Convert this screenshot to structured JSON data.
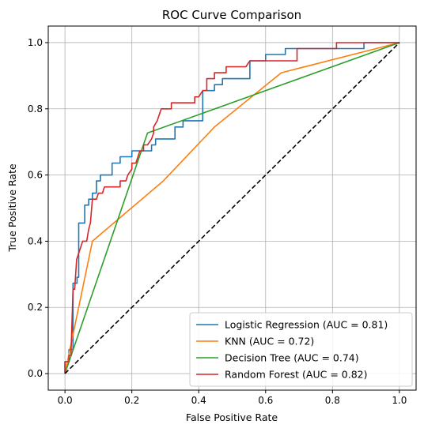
{
  "chart_data": {
    "type": "line",
    "title": "ROC Curve Comparison",
    "xlabel": "False Positive Rate",
    "ylabel": "True Positive Rate",
    "xlim": [
      -0.05,
      1.05
    ],
    "ylim": [
      -0.05,
      1.05
    ],
    "xticks": [
      "0.0",
      "0.2",
      "0.4",
      "0.6",
      "0.8",
      "1.0"
    ],
    "yticks": [
      "0.0",
      "0.2",
      "0.4",
      "0.6",
      "0.8",
      "1.0"
    ],
    "grid": true,
    "legend_position": "lower-right",
    "series": [
      {
        "name": "Logistic Regression (AUC = 0.81)",
        "color": "#1f77b4",
        "points": [
          [
            0,
            0
          ],
          [
            0,
            0.036
          ],
          [
            0.012,
            0.036
          ],
          [
            0.012,
            0.073
          ],
          [
            0.024,
            0.073
          ],
          [
            0.024,
            0.273
          ],
          [
            0.036,
            0.273
          ],
          [
            0.036,
            0.291
          ],
          [
            0.041,
            0.291
          ],
          [
            0.041,
            0.455
          ],
          [
            0.059,
            0.455
          ],
          [
            0.059,
            0.509
          ],
          [
            0.071,
            0.509
          ],
          [
            0.071,
            0.527
          ],
          [
            0.082,
            0.527
          ],
          [
            0.082,
            0.545
          ],
          [
            0.094,
            0.545
          ],
          [
            0.094,
            0.582
          ],
          [
            0.106,
            0.582
          ],
          [
            0.106,
            0.6
          ],
          [
            0.141,
            0.6
          ],
          [
            0.141,
            0.636
          ],
          [
            0.165,
            0.636
          ],
          [
            0.165,
            0.655
          ],
          [
            0.2,
            0.655
          ],
          [
            0.2,
            0.673
          ],
          [
            0.259,
            0.673
          ],
          [
            0.259,
            0.691
          ],
          [
            0.271,
            0.691
          ],
          [
            0.271,
            0.709
          ],
          [
            0.329,
            0.709
          ],
          [
            0.329,
            0.745
          ],
          [
            0.353,
            0.745
          ],
          [
            0.353,
            0.764
          ],
          [
            0.412,
            0.764
          ],
          [
            0.412,
            0.855
          ],
          [
            0.447,
            0.855
          ],
          [
            0.447,
            0.873
          ],
          [
            0.471,
            0.873
          ],
          [
            0.471,
            0.891
          ],
          [
            0.553,
            0.891
          ],
          [
            0.553,
            0.945
          ],
          [
            0.6,
            0.945
          ],
          [
            0.6,
            0.964
          ],
          [
            0.659,
            0.964
          ],
          [
            0.659,
            0.982
          ],
          [
            0.894,
            0.982
          ],
          [
            0.894,
            1.0
          ],
          [
            1.0,
            1.0
          ]
        ]
      },
      {
        "name": "KNN (AUC = 0.72)",
        "color": "#ff7f0e",
        "points": [
          [
            0,
            0
          ],
          [
            0.082,
            0.4
          ],
          [
            0.294,
            0.582
          ],
          [
            0.447,
            0.745
          ],
          [
            0.647,
            0.909
          ],
          [
            1.0,
            1.0
          ]
        ]
      },
      {
        "name": "Decision Tree (AUC = 0.74)",
        "color": "#2ca02c",
        "points": [
          [
            0,
            0
          ],
          [
            0.247,
            0.727
          ],
          [
            1.0,
            1.0
          ]
        ]
      },
      {
        "name": "Random Forest (AUC = 0.82)",
        "color": "#d62728",
        "points": [
          [
            0,
            0
          ],
          [
            0,
            0.036
          ],
          [
            0.012,
            0.036
          ],
          [
            0.012,
            0.055
          ],
          [
            0.018,
            0.055
          ],
          [
            0.024,
            0.255
          ],
          [
            0.029,
            0.255
          ],
          [
            0.035,
            0.345
          ],
          [
            0.041,
            0.364
          ],
          [
            0.047,
            0.382
          ],
          [
            0.053,
            0.4
          ],
          [
            0.065,
            0.4
          ],
          [
            0.071,
            0.436
          ],
          [
            0.076,
            0.455
          ],
          [
            0.082,
            0.527
          ],
          [
            0.094,
            0.527
          ],
          [
            0.1,
            0.545
          ],
          [
            0.112,
            0.545
          ],
          [
            0.118,
            0.564
          ],
          [
            0.129,
            0.564
          ],
          [
            0.141,
            0.564
          ],
          [
            0.165,
            0.564
          ],
          [
            0.165,
            0.582
          ],
          [
            0.182,
            0.582
          ],
          [
            0.188,
            0.6
          ],
          [
            0.2,
            0.618
          ],
          [
            0.2,
            0.636
          ],
          [
            0.212,
            0.636
          ],
          [
            0.224,
            0.673
          ],
          [
            0.235,
            0.673
          ],
          [
            0.235,
            0.691
          ],
          [
            0.247,
            0.691
          ],
          [
            0.259,
            0.709
          ],
          [
            0.265,
            0.727
          ],
          [
            0.265,
            0.745
          ],
          [
            0.276,
            0.764
          ],
          [
            0.282,
            0.782
          ],
          [
            0.288,
            0.8
          ],
          [
            0.306,
            0.8
          ],
          [
            0.318,
            0.8
          ],
          [
            0.318,
            0.818
          ],
          [
            0.388,
            0.818
          ],
          [
            0.388,
            0.836
          ],
          [
            0.4,
            0.836
          ],
          [
            0.412,
            0.855
          ],
          [
            0.424,
            0.855
          ],
          [
            0.424,
            0.891
          ],
          [
            0.447,
            0.891
          ],
          [
            0.447,
            0.909
          ],
          [
            0.459,
            0.909
          ],
          [
            0.482,
            0.909
          ],
          [
            0.482,
            0.927
          ],
          [
            0.494,
            0.927
          ],
          [
            0.541,
            0.927
          ],
          [
            0.553,
            0.945
          ],
          [
            0.694,
            0.945
          ],
          [
            0.694,
            0.982
          ],
          [
            0.812,
            0.982
          ],
          [
            0.812,
            1.0
          ],
          [
            1.0,
            1.0
          ]
        ]
      }
    ],
    "reference": {
      "color": "#000000",
      "points": [
        [
          0,
          0
        ],
        [
          1,
          1
        ]
      ]
    }
  }
}
